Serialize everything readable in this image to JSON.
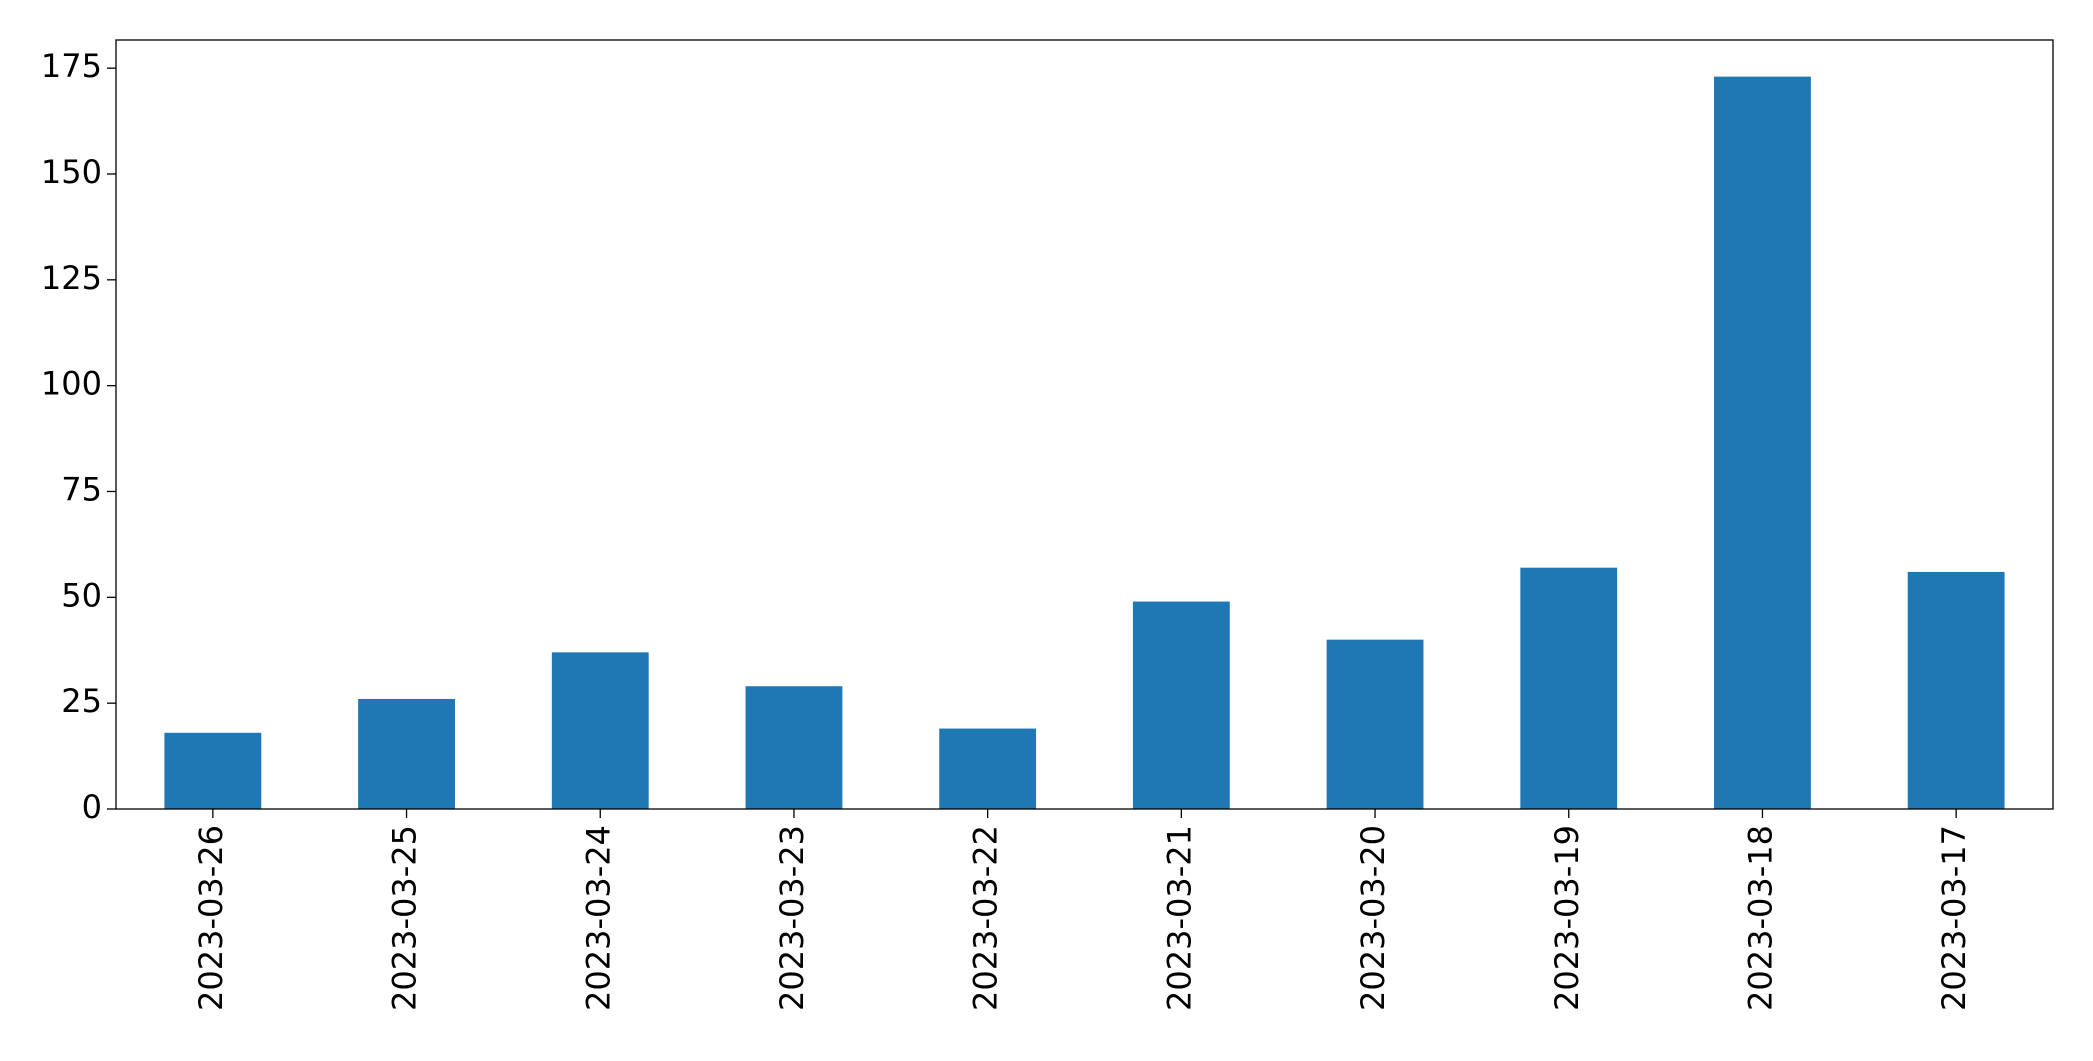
{
  "chart_data": {
    "type": "bar",
    "categories": [
      "2023-03-26",
      "2023-03-25",
      "2023-03-24",
      "2023-03-23",
      "2023-03-22",
      "2023-03-21",
      "2023-03-20",
      "2023-03-19",
      "2023-03-18",
      "2023-03-17"
    ],
    "values": [
      18,
      26,
      37,
      29,
      19,
      49,
      40,
      57,
      173,
      56
    ],
    "color": "#1f77b4",
    "ylim": [
      0,
      181.65
    ],
    "yticks": [
      0,
      25,
      50,
      75,
      100,
      125,
      150,
      175
    ],
    "grid": false
  }
}
